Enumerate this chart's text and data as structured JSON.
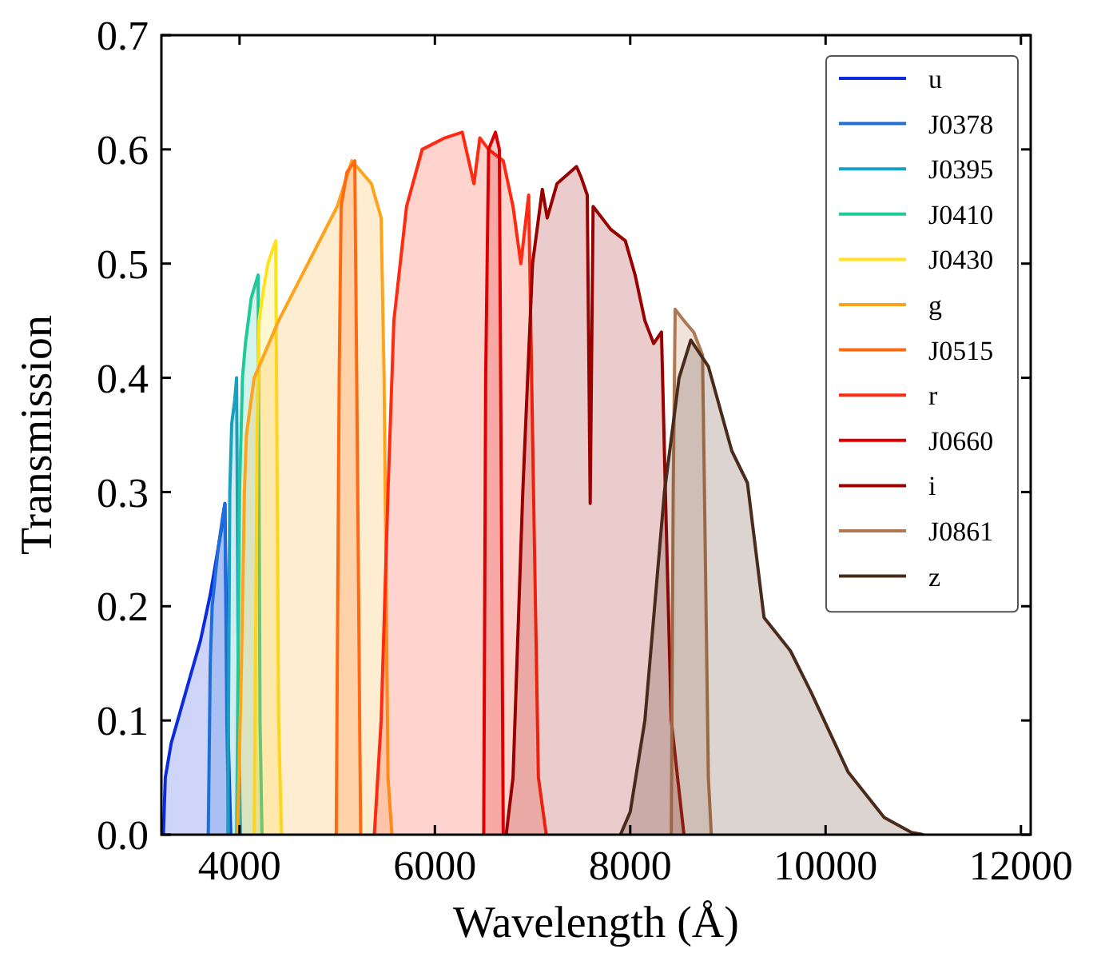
{
  "chart_data": {
    "type": "area",
    "xlabel": "Wavelength (Å)",
    "ylabel": "Transmission",
    "xlim": [
      3200,
      12100
    ],
    "ylim": [
      0,
      0.7
    ],
    "xticks": [
      4000,
      6000,
      8000,
      10000,
      12000
    ],
    "yticks": [
      {
        "value": 0,
        "label": "0.0"
      },
      {
        "value": 0.1,
        "label": "0.1"
      },
      {
        "value": 0.2,
        "label": "0.2"
      },
      {
        "value": 0.3,
        "label": "0.3"
      },
      {
        "value": 0.4,
        "label": "0.4"
      },
      {
        "value": 0.5,
        "label": "0.5"
      },
      {
        "value": 0.6,
        "label": "0.6"
      },
      {
        "value": 0.7,
        "label": "0.7"
      }
    ],
    "grid": false,
    "legend": "top right",
    "series": [
      {
        "name": "u",
        "color": "#0a2be0",
        "x": [
          3220,
          3240,
          3300,
          3400,
          3500,
          3600,
          3650,
          3700,
          3760,
          3820,
          3850,
          3880,
          3910
        ],
        "values": [
          0,
          0.05,
          0.08,
          0.11,
          0.14,
          0.17,
          0.19,
          0.21,
          0.24,
          0.27,
          0.29,
          0.1,
          0
        ]
      },
      {
        "name": "J0378",
        "color": "#1e6fdc",
        "x": [
          3680,
          3700,
          3720,
          3780,
          3830,
          3850,
          3870,
          3890
        ],
        "values": [
          0,
          0.15,
          0.2,
          0.25,
          0.28,
          0.29,
          0.1,
          0
        ]
      },
      {
        "name": "J0395",
        "color": "#17a0c0",
        "x": [
          3880,
          3900,
          3920,
          3950,
          3970,
          3990,
          4010
        ],
        "values": [
          0,
          0.3,
          0.36,
          0.38,
          0.4,
          0.1,
          0
        ]
      },
      {
        "name": "J0410",
        "color": "#1fc99a",
        "x": [
          3970,
          4000,
          4030,
          4060,
          4120,
          4190,
          4210,
          4230
        ],
        "values": [
          0,
          0.3,
          0.4,
          0.43,
          0.47,
          0.49,
          0.1,
          0
        ]
      },
      {
        "name": "J0430",
        "color": "#ffe21a",
        "x": [
          4150,
          4180,
          4200,
          4250,
          4290,
          4370,
          4400,
          4430
        ],
        "values": [
          0,
          0.35,
          0.45,
          0.48,
          0.5,
          0.52,
          0.1,
          0
        ]
      },
      {
        "name": "g",
        "color": "#ffa31a",
        "x": [
          3980,
          4020,
          4050,
          4070,
          4150,
          4400,
          4700,
          5000,
          5150,
          5250,
          5350,
          5450,
          5480,
          5520,
          5560
        ],
        "values": [
          0,
          0.15,
          0.3,
          0.35,
          0.4,
          0.45,
          0.5,
          0.55,
          0.59,
          0.58,
          0.57,
          0.54,
          0.4,
          0.05,
          0
        ]
      },
      {
        "name": "J0515",
        "color": "#ff6a10",
        "x": [
          4990,
          5020,
          5040,
          5100,
          5180,
          5210,
          5240
        ],
        "values": [
          0,
          0.4,
          0.55,
          0.58,
          0.59,
          0.3,
          0
        ]
      },
      {
        "name": "r",
        "color": "#ff2a10",
        "x": [
          5380,
          5450,
          5520,
          5580,
          5710,
          5870,
          6100,
          6280,
          6400,
          6460,
          6550,
          6700,
          6800,
          6880,
          6960,
          7010,
          7060,
          7140
        ],
        "values": [
          0,
          0.1,
          0.3,
          0.45,
          0.55,
          0.6,
          0.61,
          0.615,
          0.57,
          0.61,
          0.6,
          0.59,
          0.55,
          0.5,
          0.56,
          0.3,
          0.05,
          0
        ]
      },
      {
        "name": "J0660",
        "color": "#dd0000",
        "x": [
          6500,
          6520,
          6550,
          6620,
          6660,
          6680,
          6700
        ],
        "values": [
          0,
          0.4,
          0.6,
          0.615,
          0.6,
          0.3,
          0
        ]
      },
      {
        "name": "i",
        "color": "#990000",
        "x": [
          6730,
          6800,
          6900,
          7000,
          7100,
          7150,
          7250,
          7450,
          7500,
          7560,
          7590,
          7620,
          7800,
          7950,
          8050,
          8150,
          8240,
          8320,
          8360,
          8420,
          8550
        ],
        "values": [
          0,
          0.05,
          0.3,
          0.5,
          0.565,
          0.54,
          0.57,
          0.585,
          0.575,
          0.56,
          0.29,
          0.55,
          0.53,
          0.52,
          0.49,
          0.45,
          0.43,
          0.44,
          0.3,
          0.1,
          0
        ]
      },
      {
        "name": "J0861",
        "color": "#b07850",
        "x": [
          8420,
          8440,
          8460,
          8550,
          8650,
          8740,
          8760,
          8800,
          8830
        ],
        "values": [
          0,
          0.3,
          0.46,
          0.45,
          0.44,
          0.42,
          0.3,
          0.05,
          0
        ]
      },
      {
        "name": "z",
        "color": "#4a2a1a",
        "x": [
          7900,
          8000,
          8150,
          8350,
          8500,
          8620,
          8800,
          9040,
          9200,
          9370,
          9640,
          9850,
          10230,
          10600,
          10880,
          11000
        ],
        "values": [
          0,
          0.02,
          0.1,
          0.3,
          0.4,
          0.433,
          0.41,
          0.336,
          0.308,
          0.19,
          0.161,
          0.125,
          0.055,
          0.015,
          0.002,
          0
        ]
      }
    ]
  }
}
